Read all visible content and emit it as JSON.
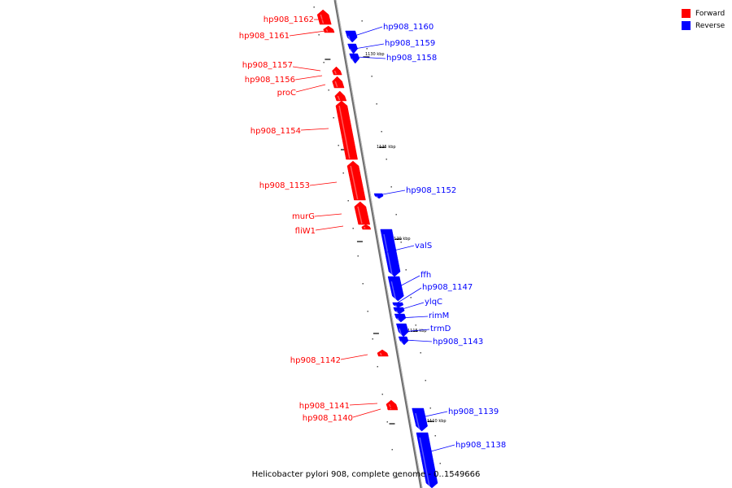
{
  "legend": [
    {
      "label": "Forward",
      "color": "#ff0000"
    },
    {
      "label": "Reverse",
      "color": "#0000ff"
    }
  ],
  "caption": "Helicobacter pylori 908, complete genome - 0..1549666",
  "colors": {
    "forward": "#ff0000",
    "reverse": "#0000ff",
    "backbone": "#808080"
  },
  "ticks": [
    {
      "label": "1130 kbp"
    },
    {
      "label": "1125 kbp"
    },
    {
      "label": "1120 kbp"
    },
    {
      "label": "1115 kbp"
    },
    {
      "label": "1110 kbp"
    }
  ],
  "genes": [
    {
      "name": "hp908_1162",
      "strand": "forward"
    },
    {
      "name": "hp908_1161",
      "strand": "forward"
    },
    {
      "name": "hp908_1160",
      "strand": "reverse"
    },
    {
      "name": "hp908_1159",
      "strand": "reverse"
    },
    {
      "name": "hp908_1158",
      "strand": "reverse"
    },
    {
      "name": "hp908_1157",
      "strand": "forward"
    },
    {
      "name": "hp908_1156",
      "strand": "forward"
    },
    {
      "name": "proC",
      "strand": "forward"
    },
    {
      "name": "hp908_1154",
      "strand": "forward"
    },
    {
      "name": "hp908_1153",
      "strand": "forward"
    },
    {
      "name": "hp908_1152",
      "strand": "reverse"
    },
    {
      "name": "murG",
      "strand": "forward"
    },
    {
      "name": "fliW1",
      "strand": "forward"
    },
    {
      "name": "valS",
      "strand": "reverse"
    },
    {
      "name": "ffh",
      "strand": "reverse"
    },
    {
      "name": "hp908_1147",
      "strand": "reverse"
    },
    {
      "name": "ylqC",
      "strand": "reverse"
    },
    {
      "name": "rimM",
      "strand": "reverse"
    },
    {
      "name": "trmD",
      "strand": "reverse"
    },
    {
      "name": "hp908_1143",
      "strand": "reverse"
    },
    {
      "name": "hp908_1142",
      "strand": "forward"
    },
    {
      "name": "hp908_1141",
      "strand": "forward"
    },
    {
      "name": "hp908_1140",
      "strand": "forward"
    },
    {
      "name": "hp908_1139",
      "strand": "reverse"
    },
    {
      "name": "hp908_1138",
      "strand": "reverse"
    }
  ]
}
